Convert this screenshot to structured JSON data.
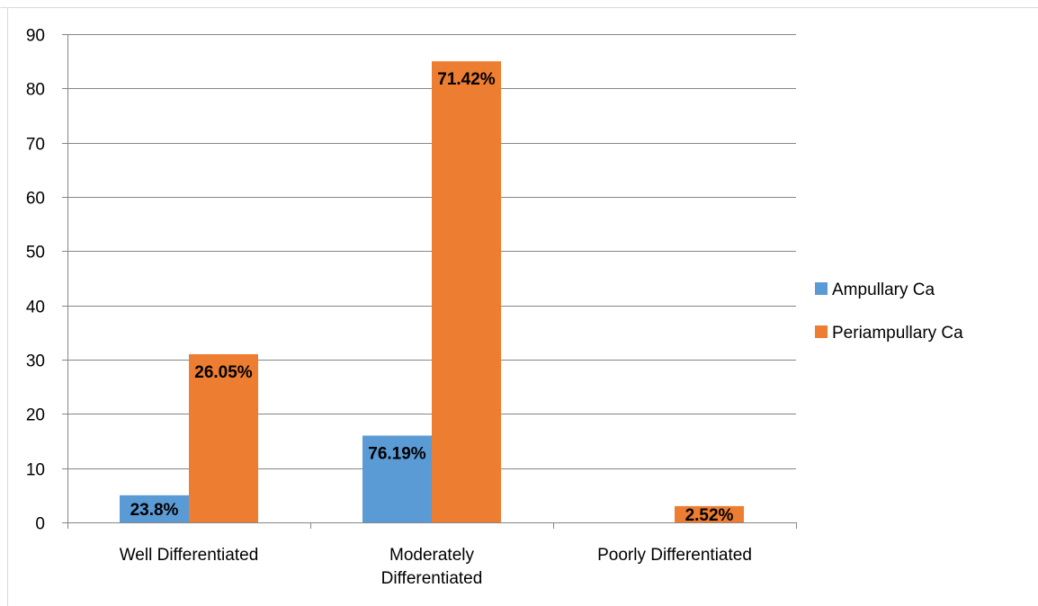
{
  "chart_data": {
    "type": "bar",
    "categories": [
      [
        "Well Differentiated"
      ],
      [
        "Moderately",
        "Differentiated"
      ],
      [
        "Poorly Differentiated"
      ]
    ],
    "series": [
      {
        "name": "Ampullary Ca",
        "color": "#5b9bd5",
        "values": [
          5,
          16,
          0
        ],
        "data_labels": [
          "23.8%",
          "76.19%",
          ""
        ]
      },
      {
        "name": "Periampullary Ca",
        "color": "#ed7d31",
        "values": [
          31,
          85,
          3
        ],
        "data_labels": [
          "26.05%",
          "71.42%",
          "2.52%"
        ]
      }
    ],
    "ylim": [
      0,
      90
    ],
    "yticks": [
      0,
      10,
      20,
      30,
      40,
      50,
      60,
      70,
      80,
      90
    ],
    "grid": true,
    "legend_position": "right",
    "title": "",
    "xlabel": "",
    "ylabel": ""
  }
}
